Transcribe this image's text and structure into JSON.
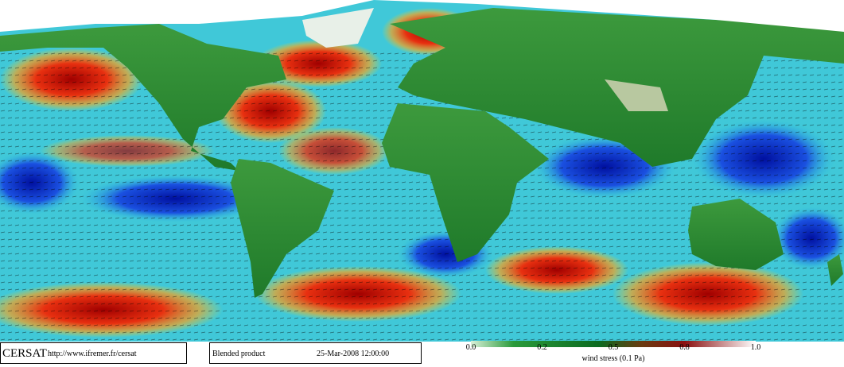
{
  "footer": {
    "source": "CERSAT",
    "url": "http://www.ifremer.fr/cersat",
    "product": "Blended product",
    "datetime": "25-Mar-2008 12:00:00"
  },
  "colorbar": {
    "ticks": [
      "0.0",
      "0.2",
      "0.5",
      "0.8",
      "1.0"
    ],
    "label": "wind stress (0.1 Pa)"
  }
}
